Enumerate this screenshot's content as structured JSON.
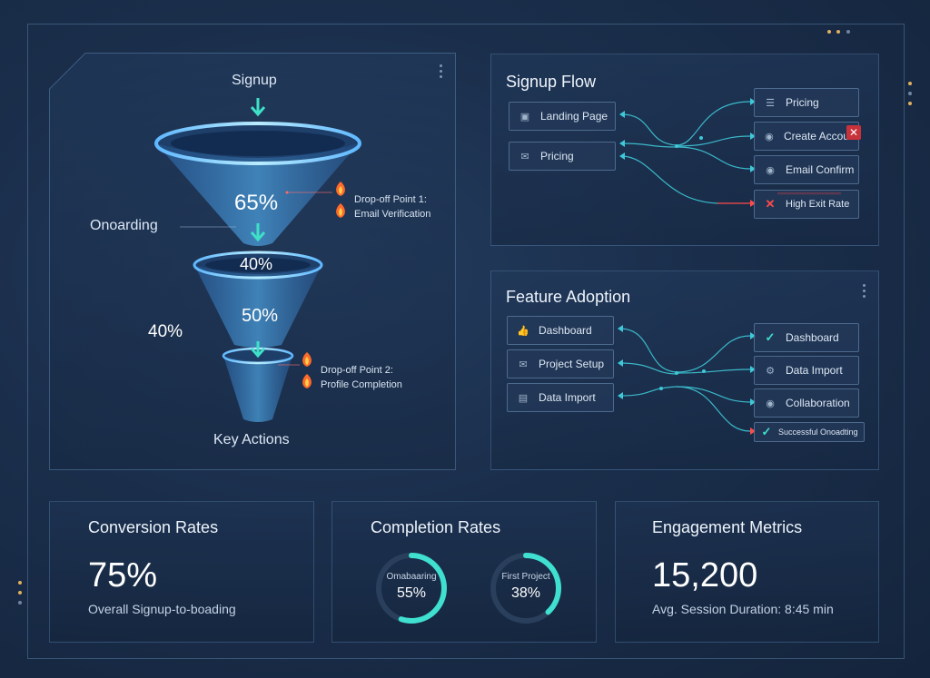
{
  "funnel": {
    "stage_signup": "Signup",
    "stage_onboarding": "Onoarding",
    "stage_key_actions": "Key Actions",
    "pct_main": "65%",
    "pct_mid": "40%",
    "pct_lower": "50%",
    "pct_side": "40%",
    "drop1_line1": "Drop-off Point 1:",
    "drop1_line2": "Email Verification",
    "drop2_line1": "Drop-off Point 2:",
    "drop2_line2": "Profile Completion"
  },
  "signup_flow": {
    "title": "Signup Flow",
    "sources": [
      {
        "label": "Landing Page",
        "icon": "document-icon"
      },
      {
        "label": "Pricing",
        "icon": "mail-icon"
      }
    ],
    "targets": [
      {
        "label": "Pricing",
        "icon": "list-icon"
      },
      {
        "label": "Create Account",
        "icon": "location-pin-icon"
      },
      {
        "label": "Email Confirm",
        "icon": "location-pin-icon"
      },
      {
        "label": "High Exit Rate",
        "icon": "cross-icon"
      }
    ]
  },
  "feature_adoption": {
    "title": "Feature Adoption",
    "sources": [
      {
        "label": "Dashboard",
        "icon": "thumbs-up-icon"
      },
      {
        "label": "Project Setup",
        "icon": "mail-icon"
      },
      {
        "label": "Data Import",
        "icon": "folder-icon"
      }
    ],
    "targets": [
      {
        "label": "Dashboard",
        "icon": "check-icon"
      },
      {
        "label": "Data Import",
        "icon": "gear-icon"
      },
      {
        "label": "Collaboration",
        "icon": "location-pin-icon"
      },
      {
        "label": "Successful Onoadting",
        "icon": "check-icon"
      }
    ]
  },
  "conversion": {
    "title": "Conversion Rates",
    "value": "75%",
    "caption": "Overall Signup-to-boading"
  },
  "completion": {
    "title": "Completion Rates",
    "rings": [
      {
        "label": "Omabaaring",
        "value": "55%",
        "fraction": 0.55
      },
      {
        "label": "First Project",
        "value": "38%",
        "fraction": 0.38
      }
    ]
  },
  "engagement": {
    "title": "Engagement Metrics",
    "value": "15,200",
    "caption": "Avg. Session Duration: 8:45 min"
  },
  "colors": {
    "accent": "#3fe0c8",
    "danger": "#ff4b4b",
    "flame": "#ff6a2a"
  }
}
